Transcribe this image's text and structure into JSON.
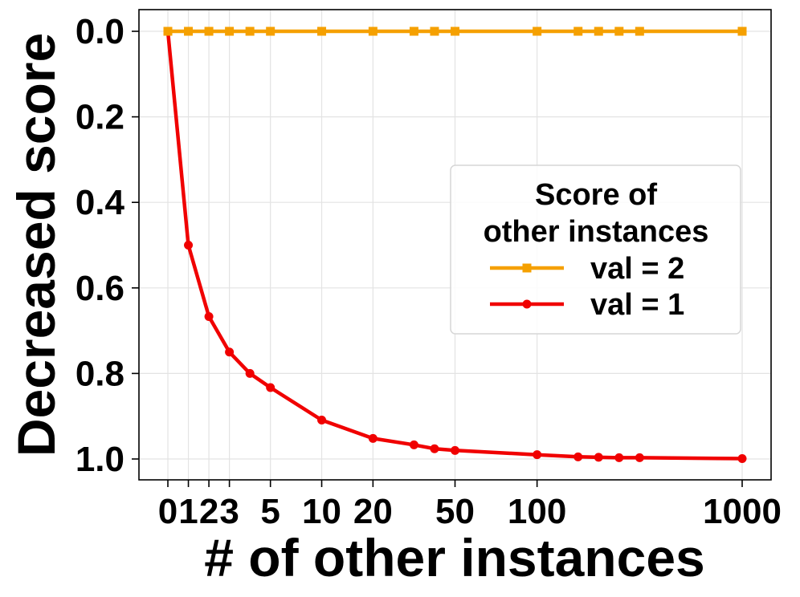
{
  "chart_data": {
    "type": "line",
    "xlabel": "# of other instances",
    "ylabel": "Decreased score",
    "ylim": [
      1.05,
      -0.05
    ],
    "y_ticks": [
      "0.0",
      "0.2",
      "0.4",
      "0.6",
      "0.8",
      "1.0"
    ],
    "y_tick_values": [
      0.0,
      0.2,
      0.4,
      0.6,
      0.8,
      1.0
    ],
    "x_ticks": [
      "0",
      "1",
      "2",
      "3",
      "5",
      "10",
      "20",
      "50",
      "100",
      "1000"
    ],
    "x_tick_positions": [
      0,
      1,
      2,
      3,
      5,
      7.5,
      10,
      14,
      18,
      28
    ],
    "grid": true,
    "legend": {
      "title_lines": [
        "Score of",
        "other instances"
      ],
      "placement": "center-right"
    },
    "series": [
      {
        "name": "val = 2",
        "color": "#f5a000",
        "marker": "square",
        "x_positions": [
          0,
          1,
          2,
          3,
          4,
          5,
          7.5,
          10,
          12,
          13,
          14,
          18,
          20,
          21,
          22,
          23,
          28
        ],
        "values": [
          0,
          0,
          0,
          0,
          0,
          0,
          0,
          0,
          0,
          0,
          0,
          0,
          0,
          0,
          0,
          0,
          0
        ]
      },
      {
        "name": "val = 1",
        "color": "#f00000",
        "marker": "circle",
        "x_positions": [
          0,
          1,
          2,
          3,
          4,
          5,
          7.5,
          10,
          12,
          13,
          14,
          18,
          20,
          21,
          22,
          23,
          28
        ],
        "values": [
          0.0,
          0.5,
          0.667,
          0.75,
          0.8,
          0.833,
          0.909,
          0.952,
          0.967,
          0.976,
          0.98,
          0.99,
          0.995,
          0.996,
          0.997,
          0.997,
          0.999
        ]
      }
    ]
  }
}
